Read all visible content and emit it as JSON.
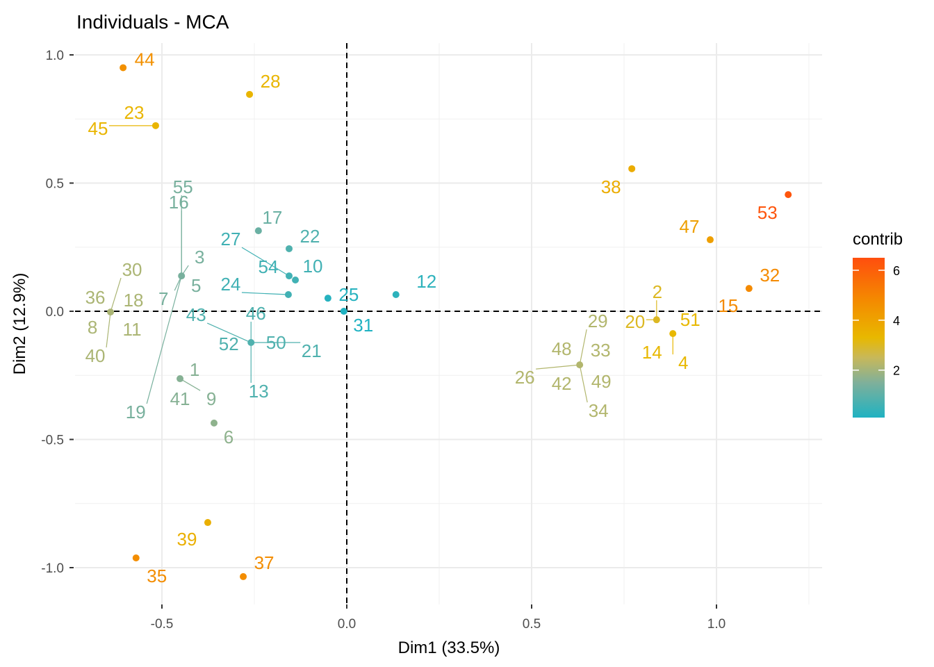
{
  "chart_data": {
    "type": "scatter",
    "title": "Individuals - MCA",
    "xlabel": "Dim1 (33.5%)",
    "ylabel": "Dim2 (12.9%)",
    "xlim": [
      -0.73,
      1.29
    ],
    "ylim": [
      -1.14,
      1.05
    ],
    "xticks": [
      -0.5,
      0.0,
      0.5,
      1.0
    ],
    "xtick_labels": [
      "-0.5",
      "0.0",
      "0.5",
      "1.0"
    ],
    "yticks": [
      -1.0,
      -0.5,
      0.0,
      0.5,
      1.0
    ],
    "ytick_labels": [
      "-1.0",
      "-0.5",
      "0.0",
      "0.5",
      "1.0"
    ],
    "grid": true,
    "reference_lines": {
      "x": 0,
      "y": 0,
      "style": "dashed"
    },
    "legend": {
      "title": "contrib",
      "position": "right",
      "type": "colorbar",
      "range": [
        0.1,
        6.5
      ],
      "ticks": [
        2,
        4,
        6
      ],
      "tick_labels": [
        "2",
        "4",
        "6"
      ],
      "gradient": [
        {
          "value": 0.1,
          "color": "#1FB2C2"
        },
        {
          "value": 1.5,
          "color": "#7FB09A"
        },
        {
          "value": 2.5,
          "color": "#C8B85A"
        },
        {
          "value": 3.3,
          "color": "#E8B800"
        },
        {
          "value": 4.8,
          "color": "#F48A00"
        },
        {
          "value": 6.5,
          "color": "#FF4E0E"
        }
      ]
    },
    "points": [
      {
        "x": -0.605,
        "y": 0.95,
        "contrib": 4.6,
        "labels": [
          "44"
        ]
      },
      {
        "x": -0.517,
        "y": 0.724,
        "contrib": 3.4,
        "labels": [
          "45",
          "23"
        ]
      },
      {
        "x": -0.263,
        "y": 0.846,
        "contrib": 3.4,
        "labels": [
          "28"
        ]
      },
      {
        "x": -0.447,
        "y": 0.138,
        "contrib": 1.4,
        "labels": [
          "55",
          "16",
          "3",
          "5",
          "7",
          "19"
        ]
      },
      {
        "x": -0.639,
        "y": -0.003,
        "contrib": 2.1,
        "labels": [
          "30",
          "36",
          "18",
          "8",
          "11",
          "40"
        ]
      },
      {
        "x": -0.239,
        "y": 0.314,
        "contrib": 1.2,
        "labels": [
          "17"
        ]
      },
      {
        "x": -0.156,
        "y": 0.244,
        "contrib": 0.8,
        "labels": [
          "22"
        ]
      },
      {
        "x": -0.156,
        "y": 0.138,
        "contrib": 0.6,
        "labels": [
          "27",
          "54"
        ]
      },
      {
        "x": -0.139,
        "y": 0.122,
        "contrib": 0.6,
        "labels": [
          "10"
        ]
      },
      {
        "x": -0.158,
        "y": 0.065,
        "contrib": 0.6,
        "labels": [
          "24"
        ]
      },
      {
        "x": -0.051,
        "y": 0.051,
        "contrib": 0.2,
        "labels": [
          "25"
        ]
      },
      {
        "x": -0.008,
        "y": 0.0,
        "contrib": 0.1,
        "labels": [
          "31"
        ]
      },
      {
        "x": 0.133,
        "y": 0.065,
        "contrib": 0.3,
        "labels": [
          "12"
        ]
      },
      {
        "x": -0.259,
        "y": -0.122,
        "contrib": 0.8,
        "labels": [
          "43",
          "46",
          "52",
          "50",
          "21",
          "13"
        ]
      },
      {
        "x": -0.451,
        "y": -0.263,
        "contrib": 1.6,
        "labels": [
          "1",
          "41",
          "9"
        ]
      },
      {
        "x": -0.359,
        "y": -0.436,
        "contrib": 1.7,
        "labels": [
          "6"
        ]
      },
      {
        "x": -0.376,
        "y": -0.824,
        "contrib": 3.6,
        "labels": [
          "39"
        ]
      },
      {
        "x": -0.57,
        "y": -0.962,
        "contrib": 4.7,
        "labels": [
          "35"
        ]
      },
      {
        "x": -0.28,
        "y": -1.035,
        "contrib": 4.7,
        "labels": [
          "37"
        ]
      },
      {
        "x": 0.771,
        "y": 0.556,
        "contrib": 3.7,
        "labels": [
          "38"
        ]
      },
      {
        "x": 1.194,
        "y": 0.455,
        "contrib": 6.3,
        "labels": [
          "53"
        ]
      },
      {
        "x": 0.983,
        "y": 0.279,
        "contrib": 4.1,
        "labels": [
          "47"
        ]
      },
      {
        "x": 1.088,
        "y": 0.089,
        "contrib": 4.8,
        "labels": [
          "32",
          "15"
        ]
      },
      {
        "x": 0.838,
        "y": -0.033,
        "contrib": 3.0,
        "labels": [
          "2",
          "20"
        ]
      },
      {
        "x": 0.882,
        "y": -0.087,
        "contrib": 3.3,
        "labels": [
          "51",
          "14",
          "4"
        ]
      },
      {
        "x": 0.63,
        "y": -0.209,
        "contrib": 2.2,
        "labels": [
          "29",
          "48",
          "33",
          "26",
          "42",
          "49",
          "34"
        ]
      }
    ]
  }
}
